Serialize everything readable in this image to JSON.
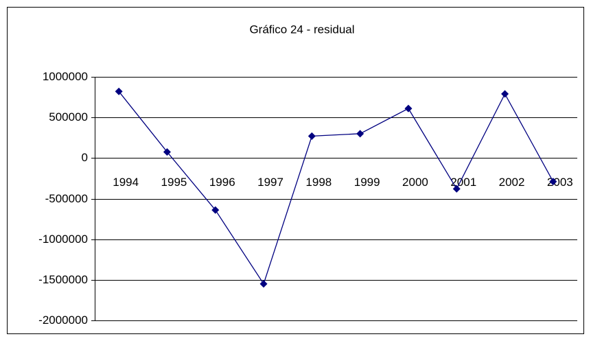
{
  "chart_data": {
    "type": "line",
    "title": "Gráfico 24 - residual",
    "categories": [
      "1994",
      "1995",
      "1996",
      "1997",
      "1998",
      "1999",
      "2000",
      "2001",
      "2002",
      "2003"
    ],
    "values": [
      820000,
      75000,
      -640000,
      -1550000,
      270000,
      300000,
      610000,
      -380000,
      790000,
      -290000
    ],
    "color": "#000080",
    "ylim": [
      -2000000,
      1000000
    ],
    "yticks": [
      -2000000,
      -1500000,
      -1000000,
      -500000,
      0,
      500000,
      1000000
    ],
    "grid": true
  }
}
